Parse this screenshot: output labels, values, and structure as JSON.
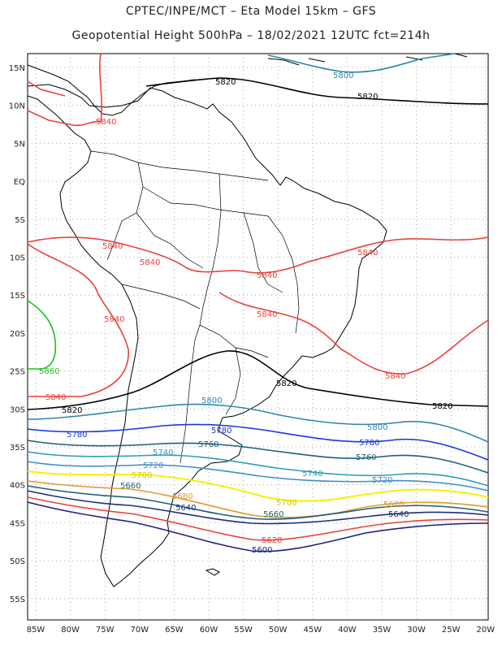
{
  "title_line1": "CPTEC/INPE/MCT –  Eta Model 15km – GFS",
  "title_line2": "Geopotential Height 500hPa – 18/02/2021 12UTC fct=214h",
  "map": {
    "lat_labels": [
      "15N",
      "10N",
      "5N",
      "EQ",
      "5S",
      "10S",
      "15S",
      "20S",
      "25S",
      "30S",
      "35S",
      "40S",
      "45S",
      "50S",
      "55S"
    ],
    "lon_labels": [
      "85W",
      "80W",
      "75W",
      "70W",
      "65W",
      "60W",
      "55W",
      "50W",
      "45W",
      "40W",
      "35W",
      "30W",
      "25W",
      "20W"
    ],
    "contours": [
      {
        "name": "c5800-north",
        "label": "5800",
        "color": "#2e86ab"
      },
      {
        "name": "c5820-north",
        "label": "5820",
        "color": "#000000"
      },
      {
        "name": "c5840-north",
        "label": "5840",
        "color": "#e8413c"
      },
      {
        "name": "c5840-central",
        "label": "5840",
        "color": "#e8413c"
      },
      {
        "name": "c5860",
        "label": "5860",
        "color": "#19c219"
      },
      {
        "name": "c5820-south",
        "label": "5820",
        "color": "#000000"
      },
      {
        "name": "c5800-south",
        "label": "5800",
        "color": "#2e86ab"
      },
      {
        "name": "c5780",
        "label": "5780",
        "color": "#1536e0"
      },
      {
        "name": "c5760",
        "label": "5760",
        "color": "#1e5f7a"
      },
      {
        "name": "c5740",
        "label": "5740",
        "color": "#2a9fb5"
      },
      {
        "name": "c5720",
        "label": "5720",
        "color": "#3f8fc4"
      },
      {
        "name": "c5700",
        "label": "5700",
        "color": "#f5f000"
      },
      {
        "name": "c5680",
        "label": "5680",
        "color": "#e09a2e"
      },
      {
        "name": "c5660",
        "label": "5660",
        "color": "#1e5f7a"
      },
      {
        "name": "c5640",
        "label": "5640",
        "color": "#1e2f7a"
      },
      {
        "name": "c5620",
        "label": "5620",
        "color": "#e8413c"
      },
      {
        "name": "c5600",
        "label": "5600",
        "color": "#1a237e"
      }
    ],
    "colors": {
      "coast": "#000000",
      "grid": "#999999",
      "frame": "#000000"
    }
  }
}
